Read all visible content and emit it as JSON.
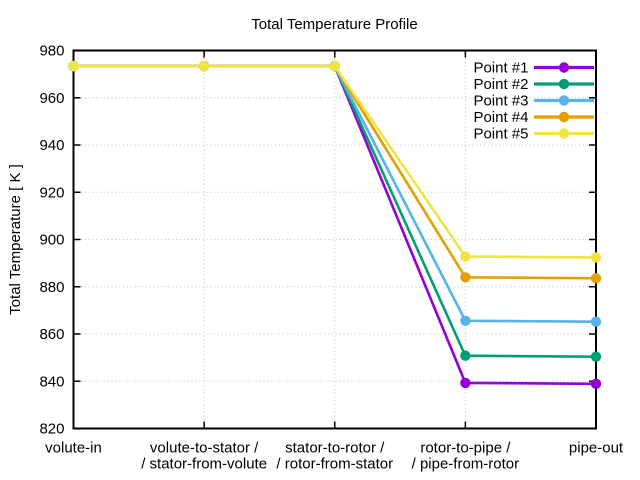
{
  "page": {
    "background": "#ffffff",
    "text_color": "#000000",
    "grid_color": "#c8c8c8"
  },
  "chart_data": {
    "type": "line",
    "title": "Total Temperature Profile",
    "xlabel": "",
    "ylabel": "Total Temperature [ K ]",
    "ylim": [
      820,
      980
    ],
    "y_ticks": [
      820,
      840,
      860,
      880,
      900,
      920,
      940,
      960,
      980
    ],
    "grid": true,
    "legend_position": "top-right-inside",
    "marker": "filled-circle",
    "categories": [
      [
        "volute-in"
      ],
      [
        "volute-to-stator /",
        "/ stator-from-volute"
      ],
      [
        "stator-to-rotor /",
        "/ rotor-from-stator"
      ],
      [
        "rotor-to-pipe /",
        "/ pipe-from-rotor"
      ],
      [
        "pipe-out"
      ]
    ],
    "series": [
      {
        "name": "Point #1",
        "color": "#9400d3",
        "values": [
          973.4,
          973.4,
          973.4,
          839.3,
          838.9
        ]
      },
      {
        "name": "Point #2",
        "color": "#009e73",
        "values": [
          973.4,
          973.4,
          973.4,
          850.8,
          850.4
        ]
      },
      {
        "name": "Point #3",
        "color": "#56b4e9",
        "values": [
          973.4,
          973.4,
          973.4,
          865.6,
          865.2
        ]
      },
      {
        "name": "Point #4",
        "color": "#e69f00",
        "values": [
          973.4,
          973.4,
          973.4,
          884.0,
          883.6
        ]
      },
      {
        "name": "Point #5",
        "color": "#f0e442",
        "values": [
          973.4,
          973.4,
          973.4,
          892.8,
          892.4
        ]
      }
    ]
  }
}
